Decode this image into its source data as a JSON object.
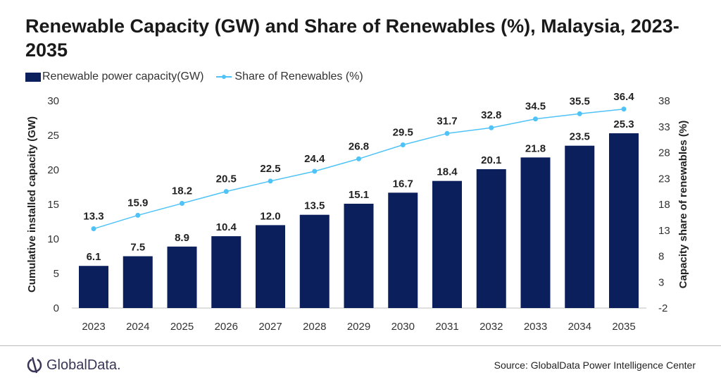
{
  "chart_data": {
    "type": "bar+line",
    "title": "Renewable Capacity (GW) and Share of Renewables (%), Malaysia, 2023-2035",
    "categories": [
      "2023",
      "2024",
      "2025",
      "2026",
      "2027",
      "2028",
      "2029",
      "2030",
      "2031",
      "2032",
      "2033",
      "2034",
      "2035"
    ],
    "series": [
      {
        "name": "Renewable power capacity(GW)",
        "type": "bar",
        "axis": "left",
        "color": "#0a1f5c",
        "values": [
          6.1,
          7.5,
          8.9,
          10.4,
          12.0,
          13.5,
          15.1,
          16.7,
          18.4,
          20.1,
          21.8,
          23.5,
          25.3
        ]
      },
      {
        "name": "Share of Renewables (%)",
        "type": "line",
        "axis": "right",
        "color": "#4fc3f7",
        "values": [
          13.3,
          15.9,
          18.2,
          20.5,
          22.5,
          24.4,
          26.8,
          29.5,
          31.7,
          32.8,
          34.5,
          35.5,
          36.4
        ]
      }
    ],
    "ylabel": "Cumulative installed capacity (GW)",
    "ylabel_right": "Capacity share of renewables (%)",
    "ylim": [
      0,
      30
    ],
    "yticks": [
      0,
      5,
      10,
      15,
      20,
      25,
      30
    ],
    "ylim_right": [
      -2,
      38
    ],
    "yticks_right": [
      -2,
      3,
      8,
      13,
      18,
      23,
      28,
      33,
      38
    ],
    "grid": false,
    "legend": "top-left"
  },
  "footer": {
    "logo": "GlobalData.",
    "source": "Source: GlobalData Power Intelligence Center"
  }
}
